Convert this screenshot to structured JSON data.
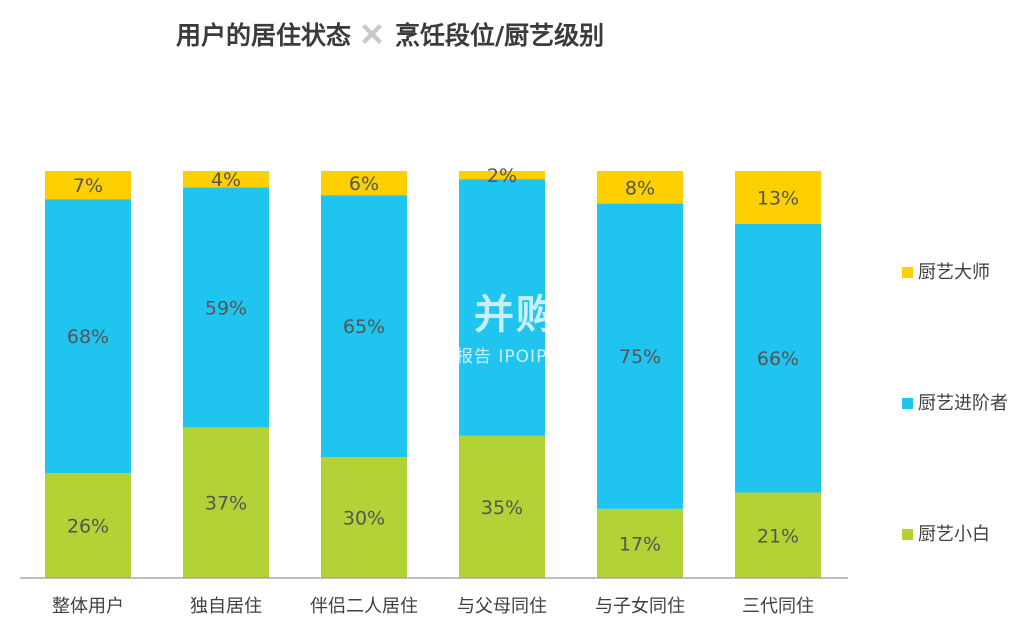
{
  "title": {
    "left": "用户的居住状态",
    "right": "烹饪段位/厨艺级别",
    "cross_icon": "x-mark-icon"
  },
  "watermark": {
    "main": "并购家",
    "sub": "行业报告 IPOIPO.CN",
    "logo_icon": "bar-chart-logo-icon"
  },
  "chart_data": {
    "type": "bar",
    "stacked": true,
    "categories": [
      "整体用户",
      "独自居住",
      "伴侣二人居住",
      "与父母同住",
      "与子女同住",
      "三代同住"
    ],
    "series": [
      {
        "name": "厨艺小白",
        "color": "#b3d236",
        "values": [
          26,
          37,
          30,
          35,
          17,
          21
        ]
      },
      {
        "name": "厨艺进阶者",
        "color": "#1fc4ef",
        "values": [
          68,
          59,
          65,
          63,
          75,
          66
        ]
      },
      {
        "name": "厨艺大师",
        "color": "#ffd000",
        "values": [
          7,
          4,
          6,
          2,
          8,
          13
        ]
      }
    ],
    "data_labels": [
      [
        "26%",
        "37%",
        "30%",
        "35%",
        "17%",
        "21%"
      ],
      [
        "68%",
        "59%",
        "65%",
        "",
        "75%",
        "66%"
      ],
      [
        "7%",
        "4%",
        "6%",
        "2%",
        "8%",
        "13%"
      ]
    ],
    "legend": {
      "position": "right",
      "order": [
        "厨艺大师",
        "厨艺进阶者",
        "厨艺小白"
      ]
    },
    "ylim": [
      0,
      100
    ],
    "grid": false
  }
}
